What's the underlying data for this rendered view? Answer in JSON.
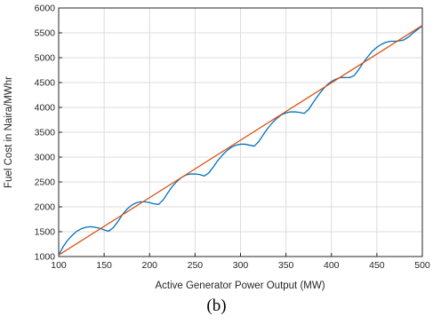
{
  "chart_data": {
    "type": "line",
    "xlabel": "Active Generator Power Output (MW)",
    "ylabel": "Fuel Cost in Naira/MWhr",
    "xlim": [
      100,
      500
    ],
    "ylim": [
      1000,
      6000
    ],
    "xticks": [
      100,
      150,
      200,
      250,
      300,
      350,
      400,
      450,
      500
    ],
    "yticks": [
      1000,
      1500,
      2000,
      2500,
      3000,
      3500,
      4000,
      4500,
      5000,
      5500,
      6000
    ],
    "grid": true,
    "legend": "none",
    "series": [
      {
        "color": "#0072BD",
        "x": [
          100,
          105,
          110,
          115,
          120,
          125,
          130,
          135,
          140,
          145,
          150,
          155,
          160,
          165,
          170,
          175,
          180,
          185,
          190,
          195,
          200,
          205,
          210,
          215,
          220,
          225,
          230,
          235,
          240,
          245,
          250,
          255,
          260,
          265,
          270,
          275,
          280,
          285,
          290,
          295,
          300,
          305,
          310,
          315,
          320,
          325,
          330,
          335,
          340,
          345,
          350,
          355,
          360,
          365,
          370,
          375,
          380,
          385,
          390,
          395,
          400,
          405,
          410,
          415,
          420,
          425,
          430,
          435,
          440,
          445,
          450,
          455,
          460,
          465,
          470,
          475,
          480,
          485,
          490,
          495,
          500
        ],
        "values": [
          1030,
          1200,
          1330,
          1430,
          1510,
          1560,
          1590,
          1600,
          1590,
          1570,
          1535,
          1510,
          1580,
          1700,
          1840,
          1950,
          2030,
          2080,
          2100,
          2100,
          2085,
          2060,
          2050,
          2140,
          2280,
          2410,
          2510,
          2590,
          2640,
          2660,
          2660,
          2650,
          2620,
          2680,
          2800,
          2930,
          3040,
          3130,
          3200,
          3240,
          3260,
          3260,
          3240,
          3220,
          3310,
          3450,
          3580,
          3690,
          3780,
          3850,
          3890,
          3910,
          3910,
          3900,
          3880,
          3960,
          4100,
          4230,
          4350,
          4450,
          4520,
          4570,
          4600,
          4600,
          4600,
          4640,
          4760,
          4900,
          5020,
          5130,
          5210,
          5270,
          5310,
          5330,
          5330,
          5340,
          5360,
          5420,
          5500,
          5570,
          5640
        ]
      },
      {
        "color": "#D95319",
        "x": [
          100,
          500
        ],
        "values": [
          1030,
          5650
        ]
      }
    ]
  },
  "caption": "(b)"
}
